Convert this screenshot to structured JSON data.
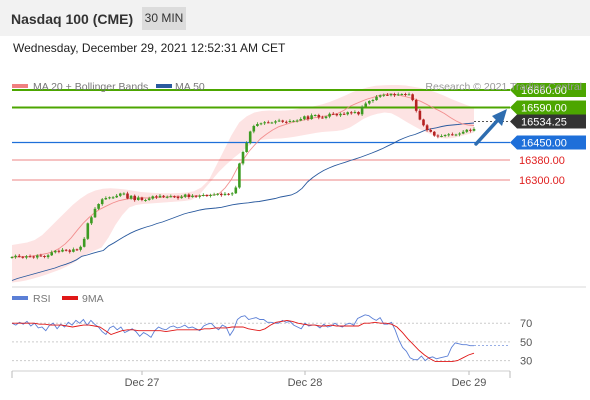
{
  "header": {
    "title": "Nasdaq 100 (CME)",
    "timeframe": "30 MIN"
  },
  "datetime": "Wednesday, December 29, 2021 12:52:31 AM CET",
  "credit": "Research © 2021 Trading Central",
  "colors": {
    "resistance": "#4ca600",
    "support": "#1e6fd9",
    "target": "#e02020",
    "last_price": "#333333",
    "ma20": "#f08080",
    "ma50": "#2a5a9e",
    "bollinger_fill": "#fde3e3",
    "candle_up": "#3d9b22",
    "candle_down": "#b52222",
    "rsi": "#5b7fd6",
    "rsi_ma": "#e01818",
    "arrow": "#2e6db0"
  },
  "chart_data": [
    {
      "type": "candlestick",
      "title": "Nasdaq 100 (CME)",
      "timeframe": "30 MIN",
      "x_labels": [
        "Dec 27",
        "Dec 28",
        "Dec 29"
      ],
      "ylim": [
        15880,
        16740
      ],
      "legend": [
        {
          "name": "MA 20 + Bollinger Bands",
          "color": "#f08080"
        },
        {
          "name": "MA 50",
          "color": "#2a5a9e"
        }
      ],
      "levels": [
        {
          "label": "16660.00",
          "value": 16660,
          "kind": "resistance"
        },
        {
          "label": "16590.00",
          "value": 16590,
          "kind": "resistance"
        },
        {
          "label": "16534.25",
          "value": 16534.25,
          "kind": "last"
        },
        {
          "label": "16450.00",
          "value": 16450,
          "kind": "support"
        },
        {
          "label": "16380.00",
          "value": 16380,
          "kind": "target"
        },
        {
          "label": "16300.00",
          "value": 16300,
          "kind": "target"
        }
      ],
      "close": [
        15992,
        15997,
        15993,
        15990,
        15995,
        15994,
        15990,
        15998,
        15996,
        15992,
        15999,
        16011,
        16017,
        16014,
        16021,
        16019,
        16013,
        16023,
        16021,
        16033,
        16065,
        16127,
        16151,
        16185,
        16204,
        16223,
        16228,
        16231,
        16231,
        16237,
        16246,
        16246,
        16226,
        16237,
        16220,
        16230,
        16220,
        16220,
        16226,
        16235,
        16231,
        16237,
        16233,
        16233,
        16235,
        16233,
        16228,
        16233,
        16242,
        16232,
        16237,
        16233,
        16237,
        16240,
        16237,
        16240,
        16242,
        16245,
        16240,
        16245,
        16243,
        16247,
        16270,
        16366,
        16412,
        16448,
        16494,
        16516,
        16524,
        16527,
        16531,
        16530,
        16530,
        16535,
        16538,
        16533,
        16532,
        16536,
        16537,
        16538,
        16544,
        16555,
        16544,
        16559,
        16560,
        16550,
        16548,
        16554,
        16565,
        16564,
        16559,
        16565,
        16563,
        16571,
        16568,
        16572,
        16563,
        16594,
        16606,
        16616,
        16620,
        16633,
        16639,
        16641,
        16639,
        16644,
        16639,
        16643,
        16644,
        16642,
        16643,
        16620,
        16577,
        16542,
        16519,
        16500,
        16493,
        16478,
        16474,
        16476,
        16480,
        16483,
        16480,
        16482,
        16486,
        16493,
        16501,
        16497,
        16504
      ],
      "ma50": [
        15898,
        15906,
        15912,
        15918,
        15924,
        15930,
        15936,
        15942,
        15948,
        15956,
        15963,
        15971,
        15981,
        15995,
        16000,
        16007,
        16013,
        16018,
        16037,
        16049,
        16062,
        16075,
        16087,
        16097,
        16105,
        16112,
        16118,
        16126,
        16132,
        16140,
        16148,
        16156,
        16164,
        16170,
        16175,
        16180,
        16184,
        16186,
        16188,
        16191,
        16196,
        16201,
        16204,
        16207,
        16209,
        16212,
        16214,
        16218,
        16222,
        16226,
        16232,
        16236,
        16240,
        16250,
        16267,
        16292,
        16310,
        16325,
        16338,
        16348,
        16357,
        16364,
        16371,
        16378,
        16385,
        16392,
        16400,
        16408,
        16417,
        16426,
        16437,
        16447,
        16459,
        16468,
        16476,
        16482,
        16491,
        16500,
        16505,
        16509,
        16514,
        16518,
        16520,
        16522,
        16525,
        16526,
        16528
      ],
      "ma20": [
        15992,
        15992,
        15994,
        15995,
        15998,
        16002,
        16007,
        16014,
        16027,
        16045,
        16069,
        16099,
        16127,
        16150,
        16170,
        16185,
        16197,
        16208,
        16217,
        16222,
        16226,
        16228,
        16229,
        16228,
        16230,
        16231,
        16232,
        16235,
        16235,
        16235,
        16236,
        16236,
        16238,
        16239,
        16240,
        16246,
        16269,
        16301,
        16346,
        16380,
        16414,
        16441,
        16466,
        16484,
        16500,
        16513,
        16521,
        16528,
        16534,
        16539,
        16544,
        16549,
        16553,
        16556,
        16561,
        16567,
        16578,
        16594,
        16605,
        16615,
        16624,
        16631,
        16638,
        16642,
        16645,
        16641,
        16636,
        16630,
        16624,
        16615,
        16603,
        16590,
        16579,
        16566,
        16550,
        16536,
        16525,
        16520,
        16518
      ],
      "boll_upper": [
        16040,
        16045,
        16050,
        16060,
        16080,
        16110,
        16140,
        16170,
        16200,
        16225,
        16245,
        16258,
        16265,
        16267,
        16265,
        16262,
        16257,
        16252,
        16250,
        16248,
        16247,
        16247,
        16248,
        16250,
        16255,
        16270,
        16300,
        16360,
        16420,
        16480,
        16530,
        16555,
        16570,
        16576,
        16578,
        16577,
        16578,
        16580,
        16586,
        16590,
        16596,
        16603,
        16613,
        16625,
        16638,
        16652,
        16662,
        16671,
        16677,
        16679,
        16680,
        16680,
        16678,
        16673,
        16668,
        16660,
        16650,
        16638,
        16624,
        16612,
        16600,
        16590
      ],
      "boll_lower": [
        15890,
        15893,
        15898,
        15905,
        15913,
        15922,
        15932,
        15942,
        15955,
        15970,
        15990,
        16005,
        16018,
        16030,
        16070,
        16120,
        16160,
        16190,
        16200,
        16204,
        16206,
        16208,
        16210,
        16212,
        16214,
        16216,
        16220,
        16235,
        16268,
        16300,
        16333,
        16360,
        16385,
        16407,
        16430,
        16450,
        16460,
        16463,
        16465,
        16466,
        16469,
        16473,
        16478,
        16483,
        16488,
        16492,
        16494,
        16496,
        16500,
        16510,
        16527,
        16545,
        16557,
        16565,
        16570,
        16567,
        16553,
        16536,
        16520,
        16505,
        16492,
        16480,
        16468,
        16466,
        16468,
        16475,
        16482,
        16490
      ]
    },
    {
      "type": "line",
      "title": "RSI",
      "legend": [
        {
          "name": "RSI",
          "color": "#5b7fd6"
        },
        {
          "name": "9MA",
          "color": "#e01818"
        }
      ],
      "yticks": [
        70,
        50,
        30
      ],
      "ylim": [
        20,
        82
      ],
      "rsi": [
        70,
        68,
        71,
        69,
        72,
        67,
        70,
        65,
        66,
        62,
        68,
        70,
        64,
        69,
        66,
        71,
        68,
        73,
        70,
        74,
        68,
        73,
        69,
        66,
        61,
        58,
        65,
        67,
        63,
        66,
        60,
        62,
        64,
        61,
        56,
        60,
        58,
        55,
        62,
        66,
        64,
        63,
        66,
        67,
        65,
        66,
        68,
        65,
        66,
        64,
        62,
        67,
        69,
        70,
        66,
        63,
        68,
        66,
        57,
        63,
        74,
        77,
        78,
        74,
        75,
        76,
        74,
        74,
        71,
        71,
        70,
        70,
        73,
        71,
        72,
        68,
        66,
        64,
        70,
        67,
        68,
        68,
        65,
        69,
        66,
        67,
        70,
        67,
        66,
        69,
        70,
        68,
        75,
        77,
        79,
        78,
        75,
        73,
        76,
        69,
        69,
        71,
        63,
        52,
        44,
        40,
        33,
        31,
        31,
        35,
        30,
        33,
        34,
        32,
        33,
        34,
        35,
        44,
        49,
        48,
        47,
        47,
        46,
        46
      ],
      "ma9": [
        70,
        70,
        70,
        70,
        70,
        69,
        69,
        68,
        68,
        68,
        67,
        66,
        67,
        68,
        68,
        67,
        66,
        62,
        58,
        60,
        62,
        63,
        63,
        62,
        62,
        62,
        62,
        62,
        61,
        62,
        63,
        63,
        63,
        63,
        63,
        64,
        64,
        65,
        65,
        65,
        66,
        66,
        66,
        64,
        63,
        62,
        64,
        68,
        71,
        72,
        73,
        72,
        70,
        69,
        68,
        68,
        67,
        67,
        68,
        67,
        67,
        67,
        67,
        67,
        70,
        70,
        71,
        70,
        70,
        69,
        66,
        60,
        53,
        47,
        41,
        36,
        32,
        29,
        29,
        29,
        29,
        30,
        33,
        36,
        38
      ]
    }
  ]
}
